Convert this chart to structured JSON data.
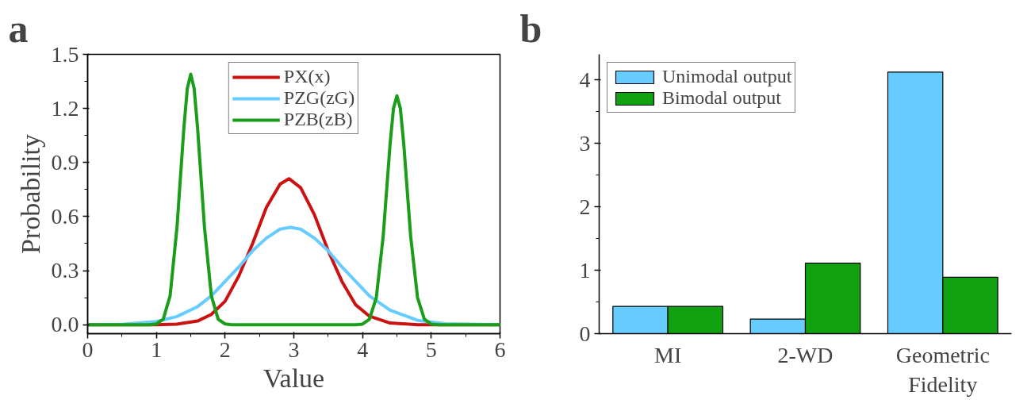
{
  "chart_data": [
    {
      "type": "line",
      "title": "a",
      "xlabel": "Value",
      "ylabel": "Probability",
      "xlim": [
        0,
        6
      ],
      "xticks": [
        0,
        1,
        2,
        3,
        4,
        5,
        6
      ],
      "ylim": [
        -0.05,
        1.5
      ],
      "yticks": [
        {
          "value": 0,
          "label": "0.0"
        },
        0.3,
        0.6,
        0.9,
        1.2,
        1.5
      ],
      "legend": "top",
      "grid": false,
      "line_style": "solid",
      "marker": "none",
      "series": [
        {
          "name": "PX(x)",
          "color": "#cc1111",
          "x": [
            0,
            0.5,
            1.0,
            1.3,
            1.6,
            1.8,
            2.0,
            2.2,
            2.4,
            2.6,
            2.8,
            2.93,
            3.1,
            3.3,
            3.5,
            3.7,
            3.9,
            4.1,
            4.4,
            4.8,
            5.2,
            6
          ],
          "values": [
            0,
            0,
            0,
            0.003,
            0.02,
            0.057,
            0.13,
            0.27,
            0.45,
            0.65,
            0.78,
            0.81,
            0.76,
            0.61,
            0.41,
            0.24,
            0.11,
            0.047,
            0.009,
            0,
            0,
            0
          ]
        },
        {
          "name": "PZG(zG)",
          "color": "#66ccff",
          "x": [
            0,
            0.5,
            1.0,
            1.3,
            1.6,
            1.8,
            2.0,
            2.2,
            2.4,
            2.6,
            2.8,
            2.95,
            3.1,
            3.3,
            3.5,
            3.7,
            3.9,
            4.1,
            4.4,
            4.8,
            5.2,
            6
          ],
          "values": [
            0,
            0.002,
            0.017,
            0.045,
            0.1,
            0.16,
            0.24,
            0.32,
            0.41,
            0.48,
            0.53,
            0.54,
            0.53,
            0.48,
            0.41,
            0.32,
            0.24,
            0.16,
            0.08,
            0.024,
            0.005,
            0
          ]
        },
        {
          "name": "PZB(zB)",
          "color": "#1a9e1a",
          "x": [
            0,
            0.9,
            1.0,
            1.1,
            1.2,
            1.3,
            1.4,
            1.45,
            1.5,
            1.55,
            1.6,
            1.7,
            1.8,
            1.9,
            2.0,
            2.1,
            3.0,
            3.9,
            4.0,
            4.1,
            4.2,
            4.3,
            4.4,
            4.45,
            4.5,
            4.55,
            4.6,
            4.7,
            4.8,
            4.9,
            5.0,
            5.1,
            6
          ],
          "values": [
            0,
            0,
            0.004,
            0.03,
            0.16,
            0.54,
            1.09,
            1.31,
            1.39,
            1.31,
            1.09,
            0.54,
            0.16,
            0.03,
            0.004,
            0,
            0,
            0,
            0.003,
            0.03,
            0.15,
            0.49,
            1.0,
            1.2,
            1.27,
            1.2,
            1.0,
            0.49,
            0.15,
            0.03,
            0.003,
            0,
            0
          ]
        }
      ]
    },
    {
      "type": "bar",
      "title": "b",
      "categories": [
        "MI",
        "2-WD",
        "Geometric Fidelity"
      ],
      "ylim": [
        0,
        4.4
      ],
      "yticks": [
        0,
        1,
        2,
        3,
        4
      ],
      "legend": "top left",
      "grid": false,
      "series": [
        {
          "name": "Unimodal output",
          "color": "#66ccff",
          "values": [
            0.43,
            0.23,
            4.12
          ]
        },
        {
          "name": "Bimodal output",
          "color": "#10a010",
          "values": [
            0.43,
            1.11,
            0.89
          ]
        }
      ]
    }
  ]
}
